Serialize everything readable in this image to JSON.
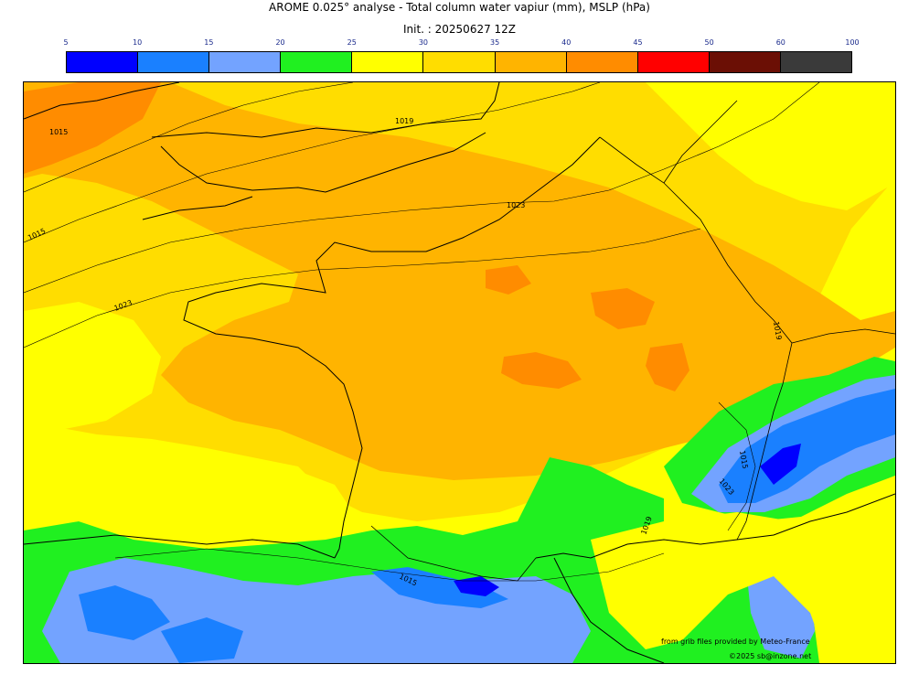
{
  "header": {
    "title": "AROME 0.025° analyse - Total column water vapiur (mm), MSLP (hPa)",
    "init": "Init. : 20250627 12Z"
  },
  "colorbar": {
    "ticks": [
      "5",
      "10",
      "15",
      "20",
      "25",
      "30",
      "35",
      "40",
      "45",
      "50",
      "60",
      "100"
    ],
    "colors": [
      "#0000ff",
      "#1a80ff",
      "#73a3ff",
      "#20f020",
      "#ffff00",
      "#ffdd00",
      "#ffb400",
      "#ff8c00",
      "#ff0000",
      "#6b0f05",
      "#3a3a3a"
    ]
  },
  "map": {
    "isobar_labels": [
      "1015",
      "1019",
      "1015",
      "1023",
      "1023",
      "1019",
      "1015",
      "1023",
      "1019",
      "1015"
    ],
    "field_colors": {
      "yellow": "#ffff00",
      "gold": "#ffdd00",
      "orange": "#ffb400",
      "dark_orange": "#ff8c00",
      "green": "#20f020",
      "light_blue": "#73a3ff",
      "blue": "#1a80ff",
      "deep_blue": "#0000ff"
    }
  },
  "credits": {
    "line1": "from grib files provided by Meteo-France",
    "line2": "©2025 sb@inzone.net"
  }
}
